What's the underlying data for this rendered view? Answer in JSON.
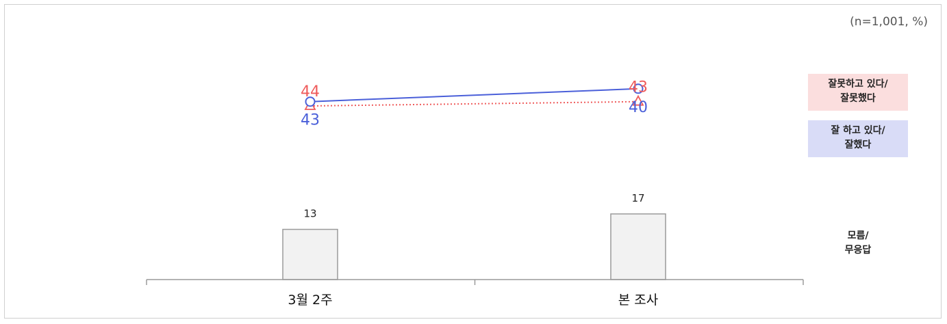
{
  "note": "(n=1,001, %)",
  "colors": {
    "wrong": "#ef5b5b",
    "good": "#4a5fd9",
    "bar_fill": "#f2f2f2",
    "bar_stroke": "#9a9a9a",
    "axis": "#9a9a9a"
  },
  "legend": {
    "wrong": [
      "잘못하고 있다/",
      "잘못했다"
    ],
    "good": [
      "잘 하고 있다/",
      "잘했다"
    ],
    "dk": [
      "모름/",
      "무응답"
    ]
  },
  "chart_data": {
    "type": "bar+line",
    "categories": [
      "3월 2주",
      "본 조사"
    ],
    "series": [
      {
        "key": "wrong",
        "name": "잘못하고 있다/ 잘못했다",
        "type": "line",
        "style": "dotted",
        "marker": "triangle",
        "values": [
          44,
          43
        ]
      },
      {
        "key": "good",
        "name": "잘 하고 있다/ 잘했다",
        "type": "line",
        "style": "solid",
        "marker": "circle",
        "values": [
          43,
          40
        ]
      },
      {
        "key": "dk",
        "name": "모름/ 무응답",
        "type": "bar",
        "values": [
          13,
          17
        ]
      }
    ],
    "data_labels": {
      "wrong": [
        "44",
        "43"
      ],
      "good": [
        "43",
        "40"
      ],
      "dk": [
        "13",
        "17"
      ]
    },
    "grid": false,
    "legend_position": "right"
  }
}
